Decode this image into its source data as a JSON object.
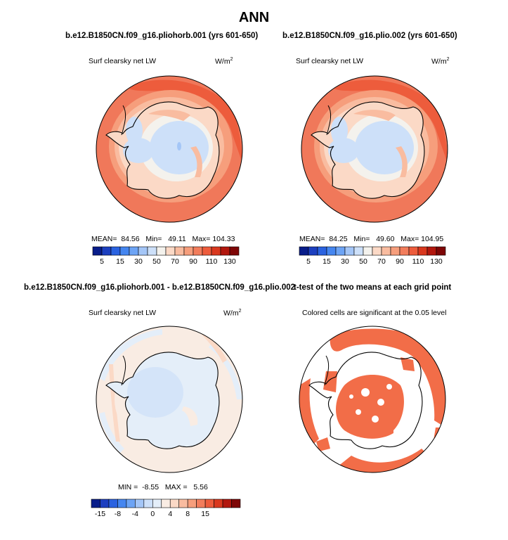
{
  "figure": {
    "title": "ANN",
    "colors": {
      "land_outline": "#000000",
      "significance": "#f26d48"
    }
  },
  "panels": {
    "top_left": {
      "title": "b.e12.B1850CN.f09_g16.pliohorb.001 (yrs 601-650)",
      "variable": "Surf clearsky net LW",
      "units": "W/m",
      "units_sup": "2",
      "stats": {
        "mean_label": "MEAN=",
        "mean": "84.56",
        "min_label": "Min=",
        "min": "49.11",
        "max_label": "Max=",
        "max": "104.33"
      }
    },
    "top_right": {
      "title": "b.e12.B1850CN.f09_g16.plio.002 (yrs 601-650)",
      "variable": "Surf clearsky net LW",
      "units": "W/m",
      "units_sup": "2",
      "stats": {
        "mean_label": "MEAN=",
        "mean": "84.25",
        "min_label": "Min=",
        "min": "49.60",
        "max_label": "Max=",
        "max": "104.95"
      }
    },
    "bottom_left": {
      "title": "b.e12.B1850CN.f09_g16.pliohorb.001 - b.e12.B1850CN.f09_g16.plio.002",
      "variable": "Surf clearsky net LW",
      "units": "W/m",
      "units_sup": "2",
      "stats": {
        "min_label": "MIN =",
        "min": "-8.55",
        "max_label": "MAX =",
        "max": "5.56"
      }
    },
    "bottom_right": {
      "title": "t-test of the two means at each grid point",
      "subtitle": "Colored cells are significant at the 0.05 level"
    }
  },
  "chart_data": [
    {
      "type": "heatmap",
      "projection": "south-polar-stereographic",
      "title": "b.e12.B1850CN.f09_g16.pliohorb.001 (yrs 601-650)",
      "variable": "Surf clearsky net LW",
      "units": "W/m2",
      "mean": 84.56,
      "min": 49.11,
      "max": 104.33,
      "colorbar": {
        "levels": [
          5,
          10,
          15,
          20,
          30,
          40,
          50,
          60,
          70,
          80,
          90,
          100,
          110,
          120,
          130
        ],
        "tick_labels": [
          "5",
          "15",
          "30",
          "50",
          "70",
          "90",
          "110",
          "130"
        ],
        "colors": [
          "#081d8a",
          "#1c3fbf",
          "#2a62e0",
          "#4586f0",
          "#6da4f5",
          "#a4c6f7",
          "#cde0f9",
          "#f4f2ed",
          "#fbd9c6",
          "#f9bca0",
          "#f69e7c",
          "#f27d5c",
          "#ed5c3c",
          "#d9381e",
          "#b2170e",
          "#7e0606"
        ]
      },
      "regions": [
        {
          "region": "Southern Ocean ring (open ocean)",
          "approx_value": 115
        },
        {
          "region": "sea-ice margin",
          "approx_value": 85
        },
        {
          "region": "East Antarctic coast",
          "approx_value": 75
        },
        {
          "region": "Antarctic plateau",
          "approx_value": 55
        }
      ]
    },
    {
      "type": "heatmap",
      "projection": "south-polar-stereographic",
      "title": "b.e12.B1850CN.f09_g16.plio.002 (yrs 601-650)",
      "variable": "Surf clearsky net LW",
      "units": "W/m2",
      "mean": 84.25,
      "min": 49.6,
      "max": 104.95,
      "colorbar": {
        "levels": [
          5,
          10,
          15,
          20,
          30,
          40,
          50,
          60,
          70,
          80,
          90,
          100,
          110,
          120,
          130
        ],
        "tick_labels": [
          "5",
          "15",
          "30",
          "50",
          "70",
          "90",
          "110",
          "130"
        ]
      },
      "regions": [
        {
          "region": "Southern Ocean ring (open ocean)",
          "approx_value": 115
        },
        {
          "region": "sea-ice margin",
          "approx_value": 85
        },
        {
          "region": "East Antarctic coast",
          "approx_value": 75
        },
        {
          "region": "Antarctic plateau",
          "approx_value": 55
        }
      ]
    },
    {
      "type": "heatmap",
      "projection": "south-polar-stereographic",
      "title": "b.e12.B1850CN.f09_g16.pliohorb.001 - b.e12.B1850CN.f09_g16.plio.002",
      "variable": "Surf clearsky net LW",
      "units": "W/m2",
      "min": -8.55,
      "max": 5.56,
      "colorbar": {
        "levels": [
          -15,
          -12,
          -10,
          -8,
          -6,
          -4,
          -2,
          -1,
          0,
          1,
          2,
          4,
          6,
          8,
          10,
          15
        ],
        "tick_labels": [
          "-15",
          "-8",
          "-4",
          "0",
          "4",
          "8",
          "15"
        ],
        "colors": [
          "#081d8a",
          "#1c3fbf",
          "#2a62e0",
          "#4586f0",
          "#6da4f5",
          "#a4c6f7",
          "#cde0f9",
          "#e4eef9",
          "#f9ece3",
          "#fbd9c6",
          "#f9bca0",
          "#f69e7c",
          "#f27d5c",
          "#ed5c3c",
          "#d9381e",
          "#b2170e",
          "#7e0606"
        ]
      },
      "regions": [
        {
          "region": "most of ocean",
          "approx_value": 0.5
        },
        {
          "region": "Antarctic interior",
          "approx_value": -1.5
        },
        {
          "region": "Weddell / Ross sectors",
          "approx_value": -1.5
        },
        {
          "region": "Indian Ocean streak",
          "approx_value": 2
        }
      ]
    },
    {
      "type": "heatmap",
      "projection": "south-polar-stereographic",
      "title": "t-test of the two means at each grid point",
      "subtitle": "Colored cells are significant at the 0.05 level",
      "significance_level": 0.05,
      "value_type": "binary significance mask"
    }
  ]
}
